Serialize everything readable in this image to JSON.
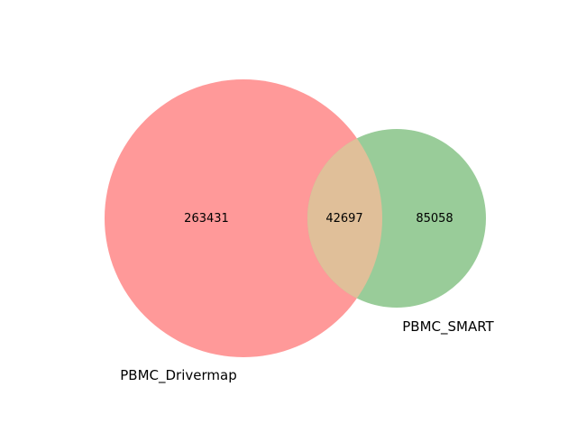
{
  "chart_data": {
    "type": "venn",
    "sets": [
      {
        "label": "PBMC_Drivermap",
        "only_count": "263431",
        "color": "#ff9999"
      },
      {
        "label": "PBMC_SMART",
        "only_count": "85058",
        "color": "#99cc99"
      }
    ],
    "intersection": {
      "count": "42697",
      "color": "#e0bf99"
    }
  }
}
